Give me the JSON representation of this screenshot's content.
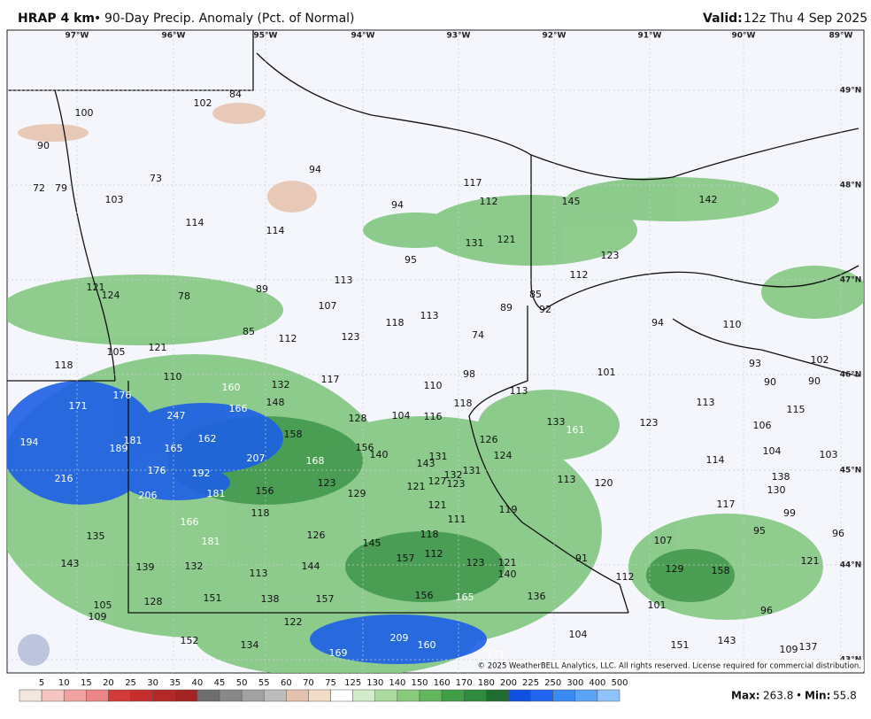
{
  "header": {
    "model": "HRAP 4 km",
    "separator": "•",
    "title": "90-Day Precip. Anomaly (Pct. of Normal)",
    "valid_label": "Valid:",
    "valid_time": "12z Thu 4 Sep 2025"
  },
  "graticule": {
    "lon": [
      "97°W",
      "96°W",
      "95°W",
      "94°W",
      "93°W",
      "92°W",
      "91°W",
      "90°W",
      "89°W"
    ],
    "lat": [
      "49°N",
      "48°N",
      "47°N",
      "46°N",
      "45°N",
      "44°N",
      "43°N"
    ]
  },
  "map": {
    "labels": [
      100,
      102,
      84,
      90,
      72,
      79,
      73,
      103,
      94,
      117,
      94,
      112,
      145,
      142,
      114,
      114,
      131,
      121,
      95,
      123,
      113,
      112,
      121,
      124,
      78,
      89,
      85,
      107,
      89,
      92,
      113,
      118,
      123,
      85,
      112,
      74,
      94,
      110,
      121,
      105,
      93,
      102,
      118,
      110,
      117,
      98,
      101,
      132,
      110,
      90,
      90,
      176,
      160,
      148,
      113,
      118,
      113,
      171,
      247,
      166,
      128,
      104,
      116,
      133,
      161,
      123,
      115,
      106,
      158,
      194,
      181,
      162,
      126,
      104,
      103,
      189,
      165,
      156,
      140,
      131,
      124,
      114,
      207,
      168,
      143,
      132,
      131,
      138,
      176,
      192,
      216,
      127,
      123,
      121,
      113,
      120,
      130,
      123,
      129,
      156,
      181,
      206,
      121,
      117,
      119,
      99,
      118,
      111,
      166,
      135,
      126,
      118,
      95,
      96,
      107,
      181,
      145,
      112,
      157,
      91,
      143,
      139,
      132,
      144,
      123,
      121,
      129,
      158,
      121,
      113,
      140,
      112,
      156,
      165,
      136,
      128,
      151,
      138,
      157,
      105,
      101,
      96,
      109,
      122,
      104,
      209,
      160,
      152,
      134,
      151,
      143,
      109,
      137,
      169,
      171
    ]
  },
  "colorbar": {
    "ticks": [
      5,
      10,
      15,
      20,
      25,
      30,
      35,
      40,
      45,
      50,
      55,
      60,
      70,
      75,
      125,
      130,
      140,
      150,
      160,
      170,
      180,
      200,
      225,
      250,
      300,
      400,
      500
    ],
    "colors": [
      "#f3e6de",
      "#f4c6bf",
      "#f0a3a0",
      "#ec8585",
      "#d33a3a",
      "#c62e2e",
      "#b52828",
      "#a32222",
      "#6e6e6e",
      "#888888",
      "#a2a2a2",
      "#bcbcbc",
      "#e4c2ae",
      "#f3ddc8",
      "#ffffff",
      "#d3ecca",
      "#acdba0",
      "#88ca7c",
      "#63b65b",
      "#409e46",
      "#2e8a3c",
      "#1f6e2f",
      "#1050e0",
      "#2266f0",
      "#3a8af4",
      "#5aa4f8",
      "#8ec4fb"
    ]
  },
  "footer": {
    "copyright": "© 2025 WeatherBELL Analytics, LLC. All rights reserved. License required for commercial distribution.",
    "max_label": "Max:",
    "max": 263.8,
    "separator": "•",
    "min_label": "Min:",
    "min": 55.8
  }
}
